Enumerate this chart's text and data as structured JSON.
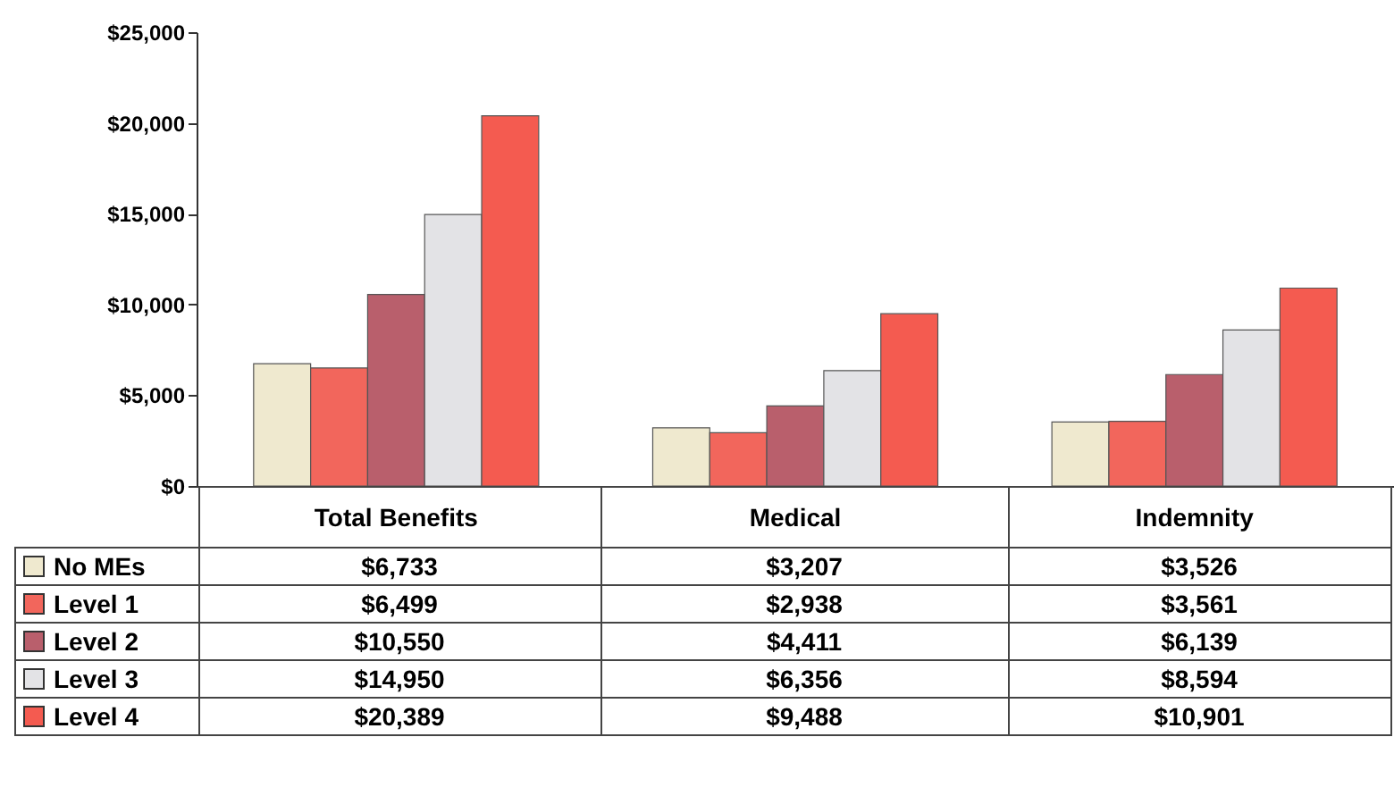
{
  "chart_data": {
    "type": "bar",
    "categories": [
      "Total Benefits",
      "Medical",
      "Indemnity"
    ],
    "series": [
      {
        "name": "No MEs",
        "color": "#efe9cf",
        "values": [
          6733,
          3207,
          3526
        ],
        "value_labels": [
          "$6,733",
          "$3,207",
          "$3,526"
        ]
      },
      {
        "name": "Level 1",
        "color": "#f2665c",
        "values": [
          6499,
          2938,
          3561
        ],
        "value_labels": [
          "$6,499",
          "$2,938",
          "$3,561"
        ]
      },
      {
        "name": "Level 2",
        "color": "#b95f6c",
        "values": [
          10550,
          4411,
          6139
        ],
        "value_labels": [
          "$10,550",
          "$4,411",
          "$6,139"
        ]
      },
      {
        "name": "Level 3",
        "color": "#e3e3e6",
        "values": [
          14950,
          6356,
          8594
        ],
        "value_labels": [
          "$14,950",
          "$6,356",
          "$8,594"
        ]
      },
      {
        "name": "Level 4",
        "color": "#f45b50",
        "values": [
          20389,
          9488,
          10901
        ],
        "value_labels": [
          "$20,389",
          "$9,488",
          "$10,901"
        ]
      }
    ],
    "ylim": [
      0,
      25000
    ],
    "yticks": [
      {
        "value": 0,
        "label": "$0"
      },
      {
        "value": 5000,
        "label": "$5,000"
      },
      {
        "value": 10000,
        "label": "$10,000"
      },
      {
        "value": 15000,
        "label": "$15,000"
      },
      {
        "value": 20000,
        "label": "$20,000"
      },
      {
        "value": 25000,
        "label": "$25,000"
      }
    ],
    "grid": false,
    "legend": "bottom"
  }
}
